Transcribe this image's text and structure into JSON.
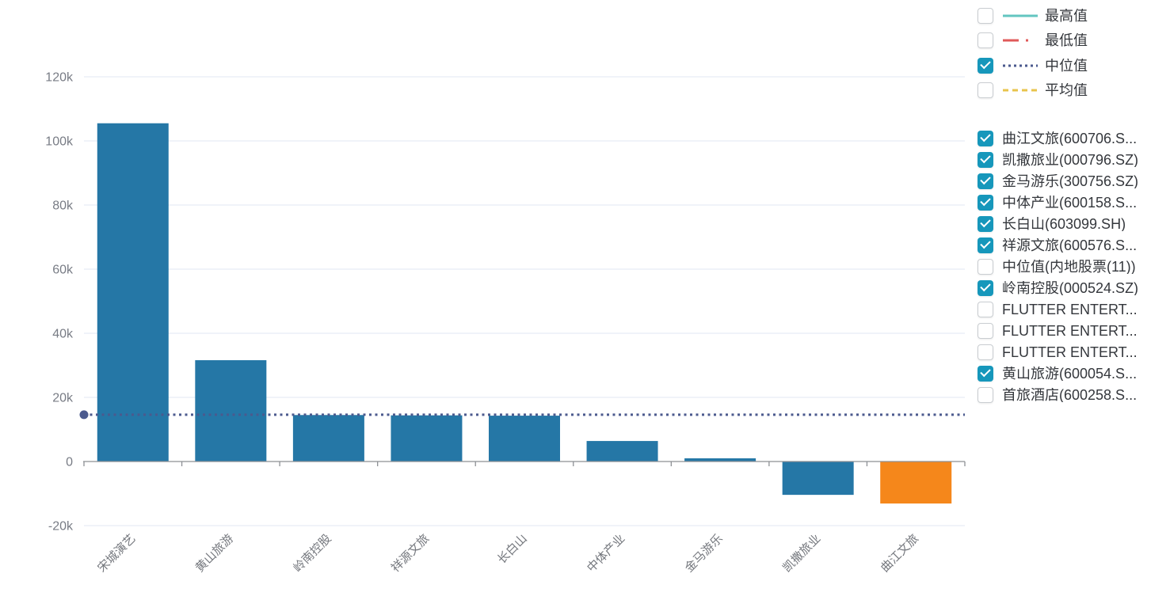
{
  "chart_data": {
    "type": "bar",
    "title": "",
    "xlabel": "",
    "ylabel": "",
    "categories": [
      "宋城演艺",
      "黄山旅游",
      "岭南控股",
      "祥源文旅",
      "长白山",
      "中体产业",
      "金马游乐",
      "凯撒旅业",
      "曲江文旅"
    ],
    "values": [
      105500,
      31600,
      14500,
      14400,
      14300,
      6400,
      1000,
      -10400,
      -13100
    ],
    "bar_default_color": "#2577a6",
    "highlight_category": "曲江文旅",
    "highlight_color": "#f5871b",
    "median_line": {
      "label": "中位值",
      "value": 14600,
      "color": "#4b5a8e",
      "style": "dotted",
      "start_dot": true
    },
    "y_ticks": [
      {
        "value": -20000,
        "label": "-20k"
      },
      {
        "value": 0,
        "label": "0"
      },
      {
        "value": 20000,
        "label": "20k"
      },
      {
        "value": 40000,
        "label": "40k"
      },
      {
        "value": 60000,
        "label": "60k"
      },
      {
        "value": 80000,
        "label": "80k"
      },
      {
        "value": 100000,
        "label": "100k"
      },
      {
        "value": 120000,
        "label": "120k"
      }
    ],
    "ylim": [
      -24000,
      120000
    ],
    "grid": true,
    "x_label_rotation": 45,
    "legend_position": "right"
  },
  "legend": {
    "stat_lines": [
      {
        "label": "最高值",
        "checked": false,
        "color": "#63c6c0",
        "style": "solid"
      },
      {
        "label": "最低值",
        "checked": false,
        "color": "#e05a5a",
        "style": "dash-dot"
      },
      {
        "label": "中位值",
        "checked": true,
        "color": "#4b5a8e",
        "style": "dotted"
      },
      {
        "label": "平均值",
        "checked": false,
        "color": "#e8c44d",
        "style": "dashed"
      }
    ],
    "series": [
      {
        "label": "曲江文旅(600706.S...",
        "checked": true
      },
      {
        "label": "凯撒旅业(000796.SZ)",
        "checked": true
      },
      {
        "label": "金马游乐(300756.SZ)",
        "checked": true
      },
      {
        "label": "中体产业(600158.S...",
        "checked": true
      },
      {
        "label": "长白山(603099.SH)",
        "checked": true
      },
      {
        "label": "祥源文旅(600576.S...",
        "checked": true
      },
      {
        "label": "中位值(内地股票(11))",
        "checked": false
      },
      {
        "label": "岭南控股(000524.SZ)",
        "checked": true
      },
      {
        "label": "FLUTTER ENTERT...",
        "checked": false
      },
      {
        "label": "FLUTTER ENTERT...",
        "checked": false
      },
      {
        "label": "FLUTTER ENTERT...",
        "checked": false
      },
      {
        "label": "黄山旅游(600054.S...",
        "checked": true
      },
      {
        "label": "首旅酒店(600258.S...",
        "checked": false
      }
    ],
    "checkbox_checked_color": "#1697bb"
  },
  "colors": {
    "grid_line": "#e2e7f3",
    "axis_line": "#8d9095",
    "y_tick_label": "#787c85",
    "x_tick_label": "#74777d",
    "legend_text": "#34373c"
  }
}
